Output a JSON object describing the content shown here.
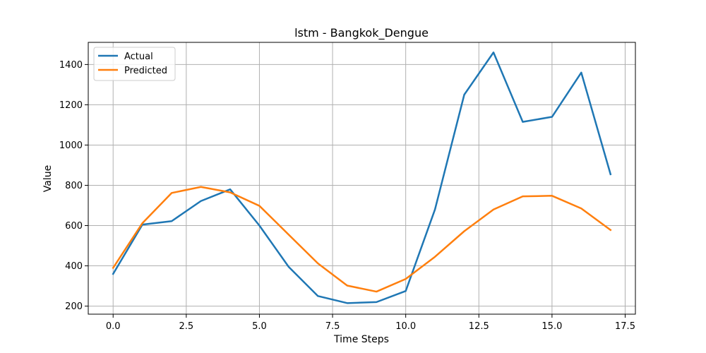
{
  "chart_data": {
    "type": "line",
    "title": "lstm - Bangkok_Dengue",
    "xlabel": "Time Steps",
    "ylabel": "Value",
    "xlim": [
      -0.85,
      17.85
    ],
    "ylim": [
      160,
      1510
    ],
    "xticks": [
      0.0,
      2.5,
      5.0,
      7.5,
      10.0,
      12.5,
      15.0,
      17.5
    ],
    "xtick_labels": [
      "0.0",
      "2.5",
      "5.0",
      "7.5",
      "10.0",
      "12.5",
      "15.0",
      "17.5"
    ],
    "yticks": [
      200,
      400,
      600,
      800,
      1000,
      1200,
      1400
    ],
    "ytick_labels": [
      "200",
      "400",
      "600",
      "800",
      "1000",
      "1200",
      "1400"
    ],
    "grid": true,
    "legend_position": "top-left",
    "x": [
      0,
      1,
      2,
      3,
      4,
      5,
      6,
      7,
      8,
      9,
      10,
      11,
      12,
      13,
      14,
      15,
      16,
      17
    ],
    "series": [
      {
        "name": "Actual",
        "color": "#1f77b4",
        "values": [
          360,
          605,
          622,
          722,
          780,
          600,
          395,
          250,
          215,
          220,
          275,
          680,
          1250,
          1460,
          1115,
          1140,
          1360,
          855
        ]
      },
      {
        "name": "Predicted",
        "color": "#ff7f0e",
        "values": [
          390,
          612,
          762,
          792,
          765,
          698,
          555,
          412,
          302,
          272,
          335,
          445,
          572,
          680,
          745,
          748,
          685,
          578
        ]
      }
    ]
  }
}
